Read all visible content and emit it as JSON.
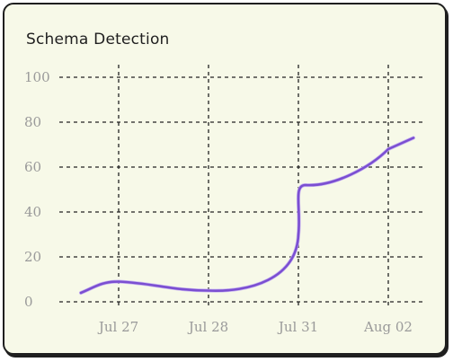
{
  "chart_data": {
    "type": "line",
    "title": "Schema Detection",
    "x": [
      "Jul 27",
      "Jul 28",
      "Jul 31",
      "Aug 02"
    ],
    "series": [
      {
        "values": [
          [
            "Jul 27",
            9
          ],
          [
            "Jul 28",
            5
          ],
          [
            "Jul 31",
            52
          ],
          [
            "Aug 02",
            68
          ]
        ]
      }
    ],
    "ylim": [
      0,
      100
    ],
    "yticks": [
      0,
      20,
      40,
      60,
      80,
      100
    ],
    "grid": true,
    "line_color": "#7b4fd1"
  }
}
